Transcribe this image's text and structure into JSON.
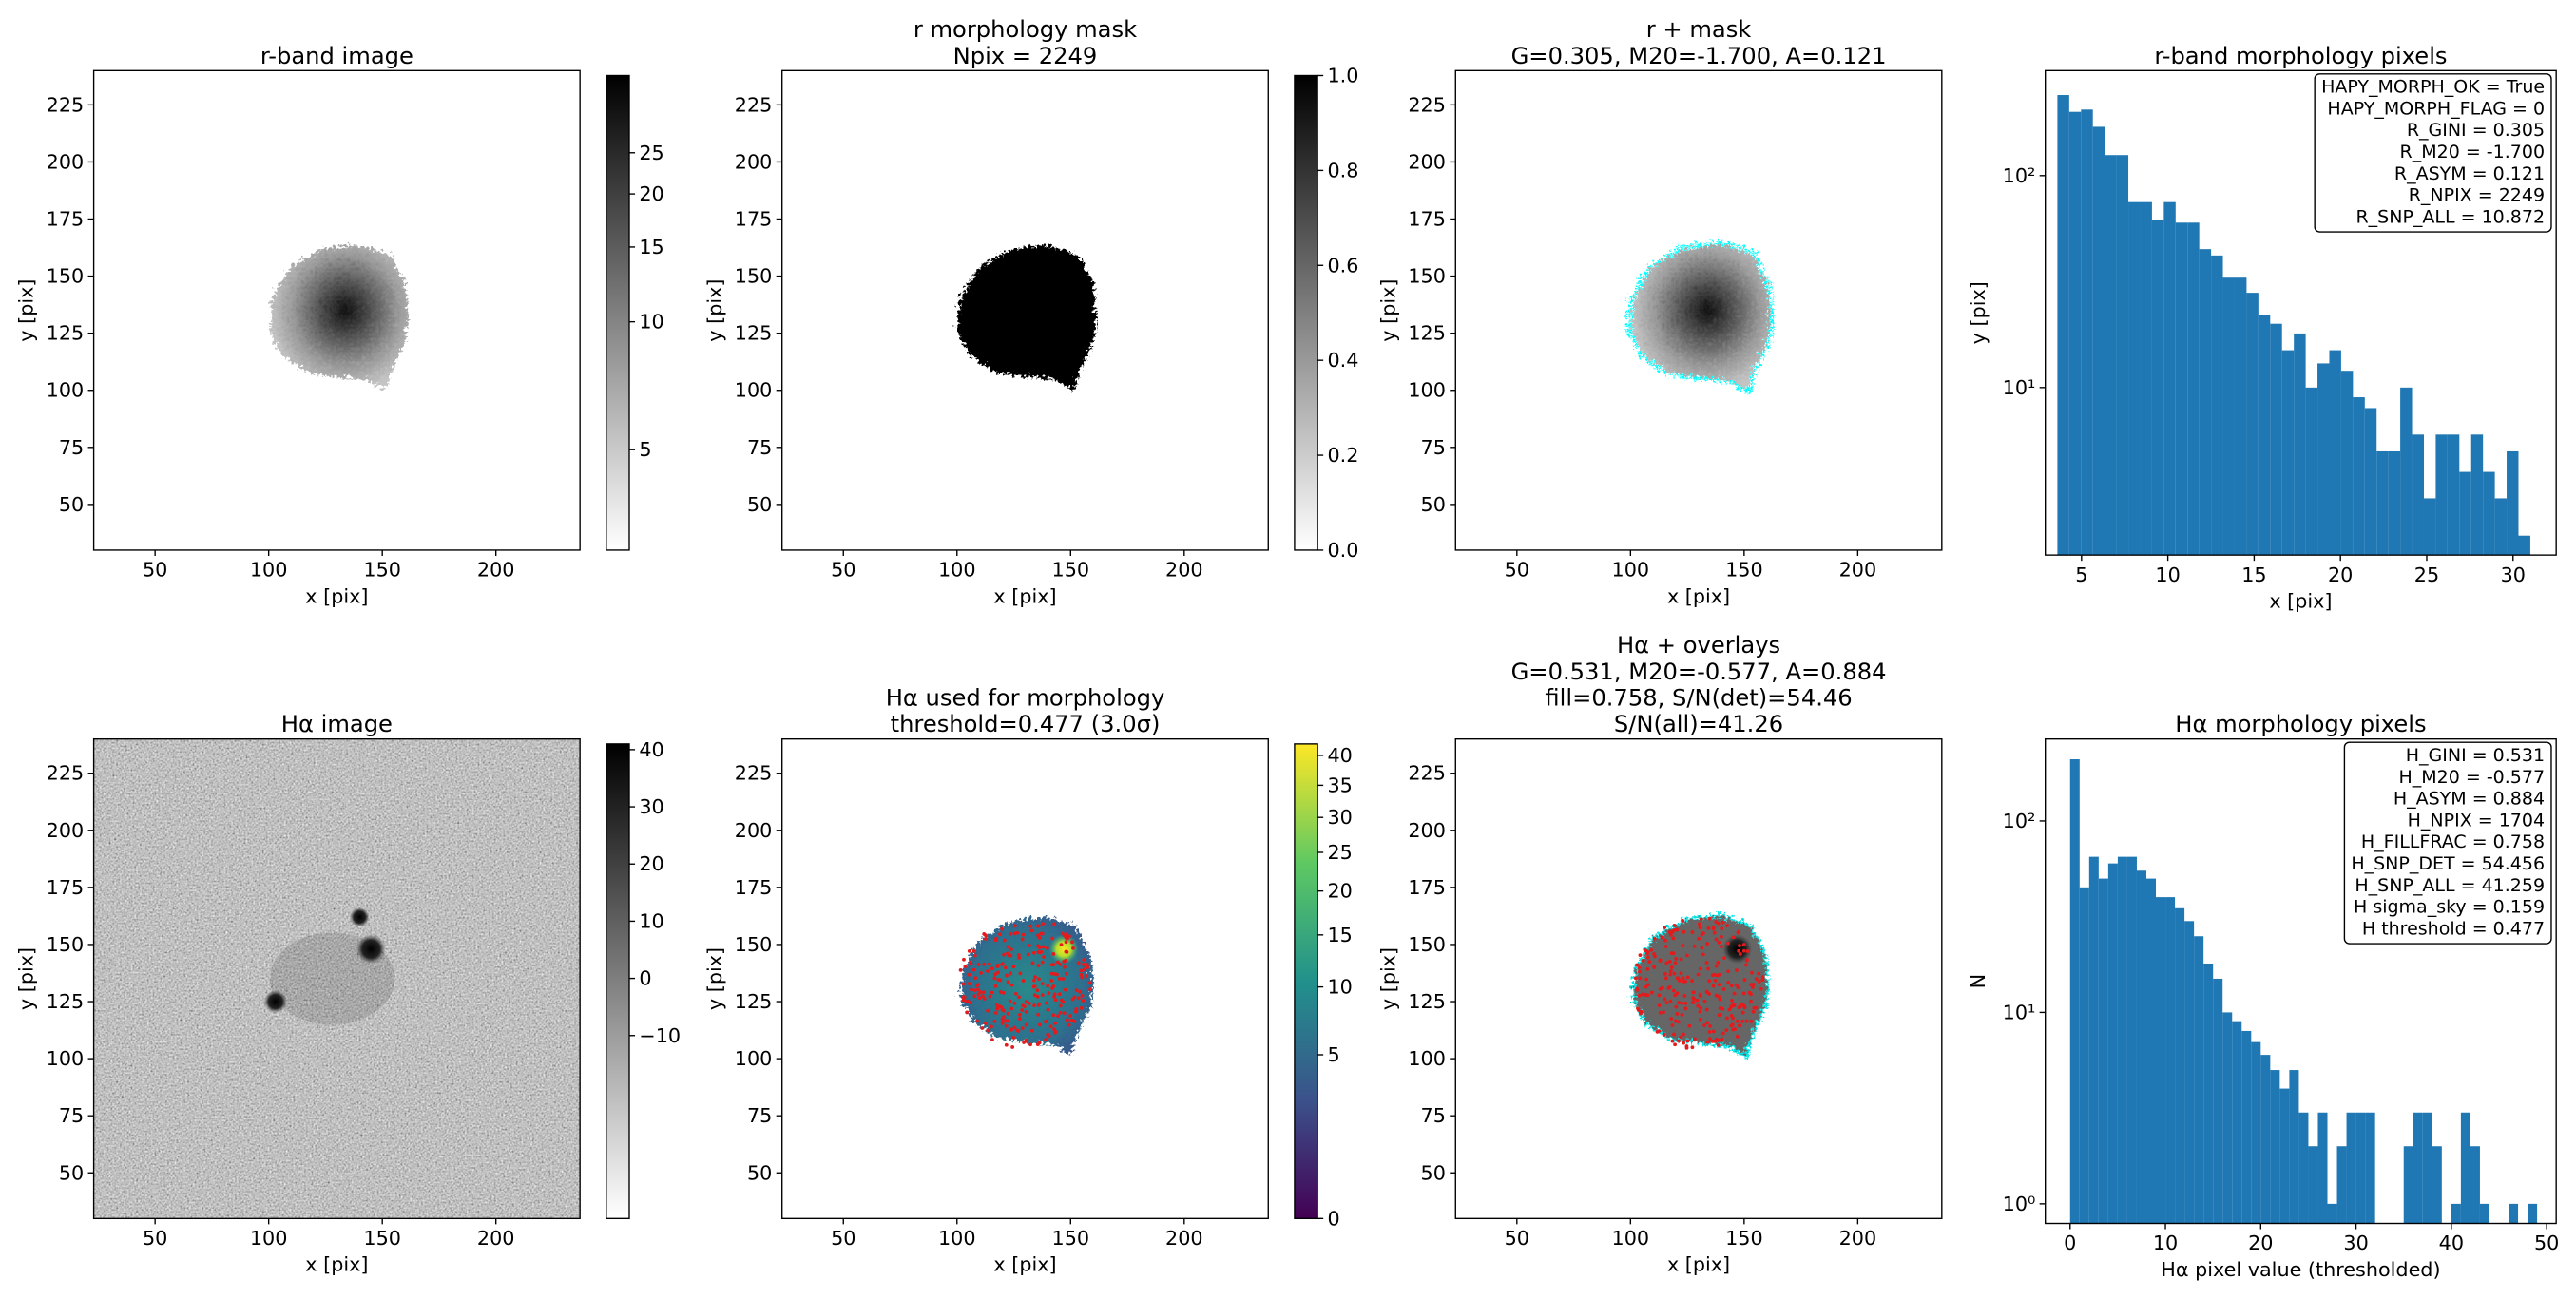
{
  "chart_data": [
    {
      "type": "image",
      "title": [
        "r-band image"
      ],
      "xlabel": "x [pix]",
      "ylabel": "y [pix]",
      "xlim": [
        23,
        237
      ],
      "ylim": [
        30,
        240
      ],
      "xticks": [
        50,
        100,
        150,
        200
      ],
      "yticks": [
        50,
        75,
        100,
        125,
        150,
        175,
        200,
        225
      ],
      "colorbar": {
        "cmap": "gray_r",
        "scale": "log",
        "clim": [
          2.9,
          38
        ],
        "ticks": [
          5,
          10,
          15,
          20,
          25
        ]
      }
    },
    {
      "type": "image",
      "title": [
        "r morphology mask",
        "Npix = 2249"
      ],
      "xlabel": "x [pix]",
      "ylabel": "y [pix]",
      "xlim": [
        23,
        237
      ],
      "ylim": [
        30,
        240
      ],
      "xticks": [
        50,
        100,
        150,
        200
      ],
      "yticks": [
        50,
        75,
        100,
        125,
        150,
        175,
        200,
        225
      ],
      "colorbar": {
        "cmap": "gray_r",
        "scale": "linear",
        "clim": [
          0,
          1
        ],
        "ticks": [
          {
            "value": 0,
            "label": "0.0"
          },
          0.2,
          0.4,
          0.6,
          0.8,
          {
            "value": 1,
            "label": "1.0"
          }
        ]
      }
    },
    {
      "type": "image",
      "title": [
        "r + mask",
        "G=0.305, M20=-1.700, A=0.121"
      ],
      "xlabel": "x [pix]",
      "ylabel": "y [pix]",
      "xlim": [
        23,
        237
      ],
      "ylim": [
        30,
        240
      ],
      "xticks": [
        50,
        100,
        150,
        200
      ],
      "yticks": [
        50,
        75,
        100,
        125,
        150,
        175,
        200,
        225
      ]
    },
    {
      "type": "histogram",
      "title": [
        "r-band morphology pixels"
      ],
      "xlabel": "x [pix]",
      "ylabel": "y [pix]",
      "color": "#1f77b4",
      "yscale": "log",
      "xlim": [
        2.9,
        32.5
      ],
      "ylim": [
        1.62,
        313
      ],
      "xticks": [
        5,
        10,
        15,
        20,
        25,
        30
      ],
      "yticks": [
        {
          "value": 10,
          "label": "10¹"
        },
        {
          "value": 100,
          "label": "10²"
        }
      ],
      "bins": [
        3.6,
        4.285,
        4.97,
        5.655,
        6.34,
        7.025,
        7.71,
        8.395,
        9.08,
        9.765,
        10.45,
        11.135,
        11.82,
        12.505,
        13.19,
        13.875,
        14.56,
        15.245,
        15.93,
        16.615,
        17.3,
        17.985,
        18.67,
        19.355,
        20.04,
        20.725,
        21.41,
        22.095,
        22.78,
        23.465,
        24.15,
        24.835,
        25.52,
        26.205,
        26.89,
        27.575,
        28.26,
        28.945,
        29.63,
        30.315,
        31.0
      ],
      "values": [
        240,
        200,
        205,
        170,
        125,
        125,
        75,
        75,
        62,
        75,
        60,
        60,
        45,
        42,
        33,
        33,
        28,
        22,
        20,
        15,
        18,
        10,
        13,
        15,
        12,
        9,
        8,
        5,
        5,
        10,
        6,
        3,
        6,
        6,
        4,
        6,
        4,
        3,
        5,
        2
      ],
      "annotation_lines": [
        "HAPY_MORPH_OK = True",
        "HAPY_MORPH_FLAG = 0",
        "R_GINI = 0.305",
        "R_M20 = -1.700",
        "R_ASYM = 0.121",
        "R_NPIX = 2249",
        "R_SNP_ALL = 10.872"
      ]
    },
    {
      "type": "image",
      "title": [
        "Hα image"
      ],
      "xlabel": "x [pix]",
      "ylabel": "y [pix]",
      "xlim": [
        23,
        237
      ],
      "ylim": [
        30,
        240
      ],
      "xticks": [
        50,
        100,
        150,
        200
      ],
      "yticks": [
        50,
        75,
        100,
        125,
        150,
        175,
        200,
        225
      ],
      "colorbar": {
        "cmap": "gray_r",
        "scale": "linear",
        "clim": [
          -42,
          41
        ],
        "ticks": [
          {
            "value": -10,
            "label": "−10"
          },
          0,
          10,
          20,
          30,
          40
        ]
      }
    },
    {
      "type": "image",
      "title": [
        "Hα used for morphology",
        "threshold=0.477 (3.0σ)"
      ],
      "xlabel": "x [pix]",
      "ylabel": "y [pix]",
      "xlim": [
        23,
        237
      ],
      "ylim": [
        30,
        240
      ],
      "xticks": [
        50,
        100,
        150,
        200
      ],
      "yticks": [
        50,
        75,
        100,
        125,
        150,
        175,
        200,
        225
      ],
      "colorbar": {
        "cmap": "viridis",
        "scale": "sqrt",
        "clim": [
          0,
          42
        ],
        "ticks": [
          0,
          5,
          10,
          15,
          20,
          25,
          30,
          35,
          40
        ]
      }
    },
    {
      "type": "image",
      "title": [
        "Hα + overlays",
        "G=0.531, M20=-0.577, A=0.884",
        "fill=0.758, S/N(det)=54.46",
        "S/N(all)=41.26"
      ],
      "xlabel": "x [pix]",
      "ylabel": "y [pix]",
      "xlim": [
        23,
        237
      ],
      "ylim": [
        30,
        240
      ],
      "xticks": [
        50,
        100,
        150,
        200
      ],
      "yticks": [
        50,
        75,
        100,
        125,
        150,
        175,
        200,
        225
      ]
    },
    {
      "type": "histogram",
      "title": [
        "Hα morphology pixels"
      ],
      "xlabel": "Hα pixel value (thresholded)",
      "ylabel": "N",
      "color": "#1f77b4",
      "yscale": "log",
      "xlim": [
        -2.6,
        51
      ],
      "ylim": [
        0.79,
        268
      ],
      "xticks": [
        0,
        10,
        20,
        30,
        40,
        50
      ],
      "yticks": [
        {
          "value": 1,
          "label": "10⁰"
        },
        {
          "value": 10,
          "label": "10¹"
        },
        {
          "value": 100,
          "label": "10²"
        }
      ],
      "bins": [
        0,
        1,
        2,
        3,
        4,
        5,
        6,
        7,
        8,
        9,
        10,
        11,
        12,
        13,
        14,
        15,
        16,
        17,
        18,
        19,
        20,
        21,
        22,
        23,
        24,
        25,
        26,
        27,
        28,
        29,
        30,
        31,
        32,
        33,
        34,
        35,
        36,
        37,
        38,
        39,
        40,
        41,
        42,
        43,
        44,
        45,
        46,
        47,
        48,
        49
      ],
      "values": [
        210,
        45,
        65,
        50,
        60,
        65,
        65,
        55,
        50,
        40,
        40,
        35,
        30,
        25,
        18,
        15,
        10,
        9,
        8,
        7,
        6,
        5,
        4,
        5,
        3,
        2,
        3,
        1,
        2,
        3,
        3,
        3,
        0,
        0,
        0,
        2,
        3,
        3,
        2,
        0,
        1,
        3,
        2,
        1,
        0,
        0,
        1,
        0,
        1
      ],
      "annotation_lines": [
        "H_GINI = 0.531",
        "H_M20 = -0.577",
        "H_ASYM = 0.884",
        "H_NPIX = 1704",
        "H_FILLFRAC = 0.758",
        "H_SNP_DET = 54.456",
        "H_SNP_ALL = 41.259",
        "H sigma_sky = 0.159",
        "H threshold = 0.477"
      ]
    }
  ]
}
